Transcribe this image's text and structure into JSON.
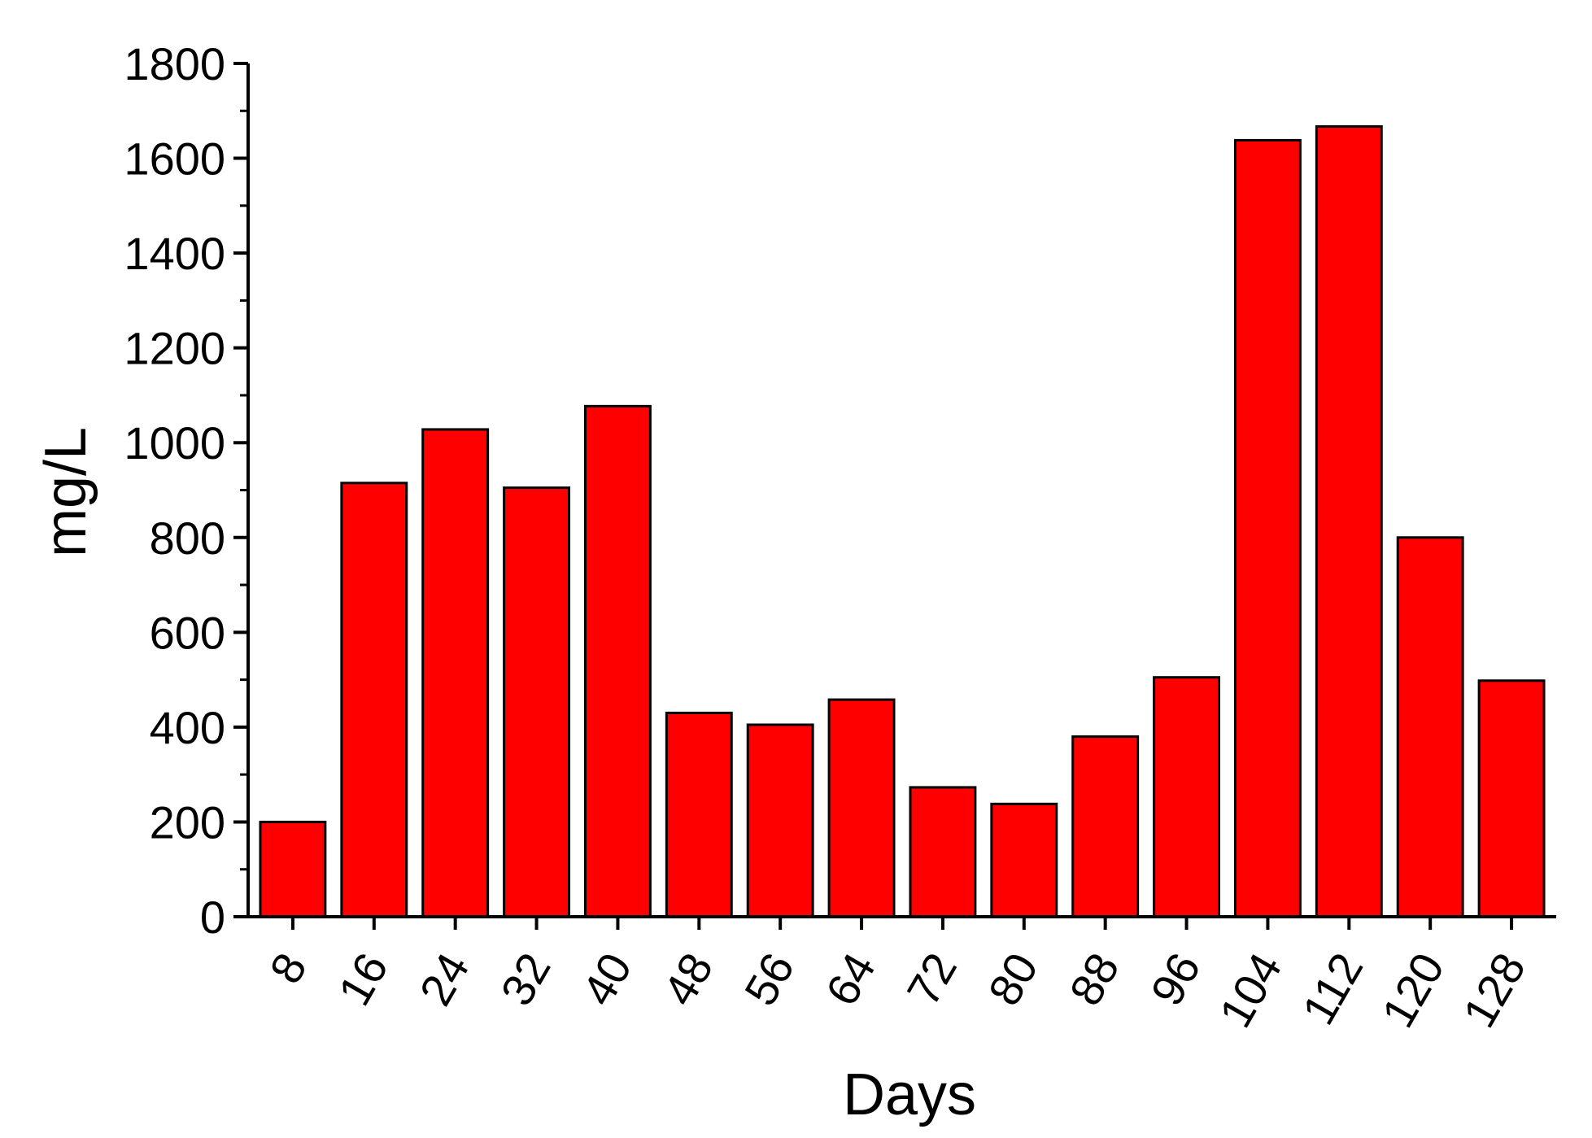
{
  "chart_data": {
    "type": "bar",
    "xlabel": "Days",
    "ylabel": "mg/L",
    "ylim": [
      0,
      1800
    ],
    "yticks": [
      0,
      200,
      400,
      600,
      800,
      1000,
      1200,
      1400,
      1600,
      1800
    ],
    "categories": [
      "8",
      "16",
      "24",
      "32",
      "40",
      "48",
      "56",
      "64",
      "72",
      "80",
      "88",
      "96",
      "104",
      "112",
      "120",
      "128"
    ],
    "values": [
      200,
      915,
      1028,
      905,
      1077,
      430,
      405,
      458,
      273,
      238,
      380,
      505,
      1638,
      1667,
      800,
      498
    ],
    "bar_color": "#ff0000",
    "grid": false,
    "legend": "none"
  }
}
